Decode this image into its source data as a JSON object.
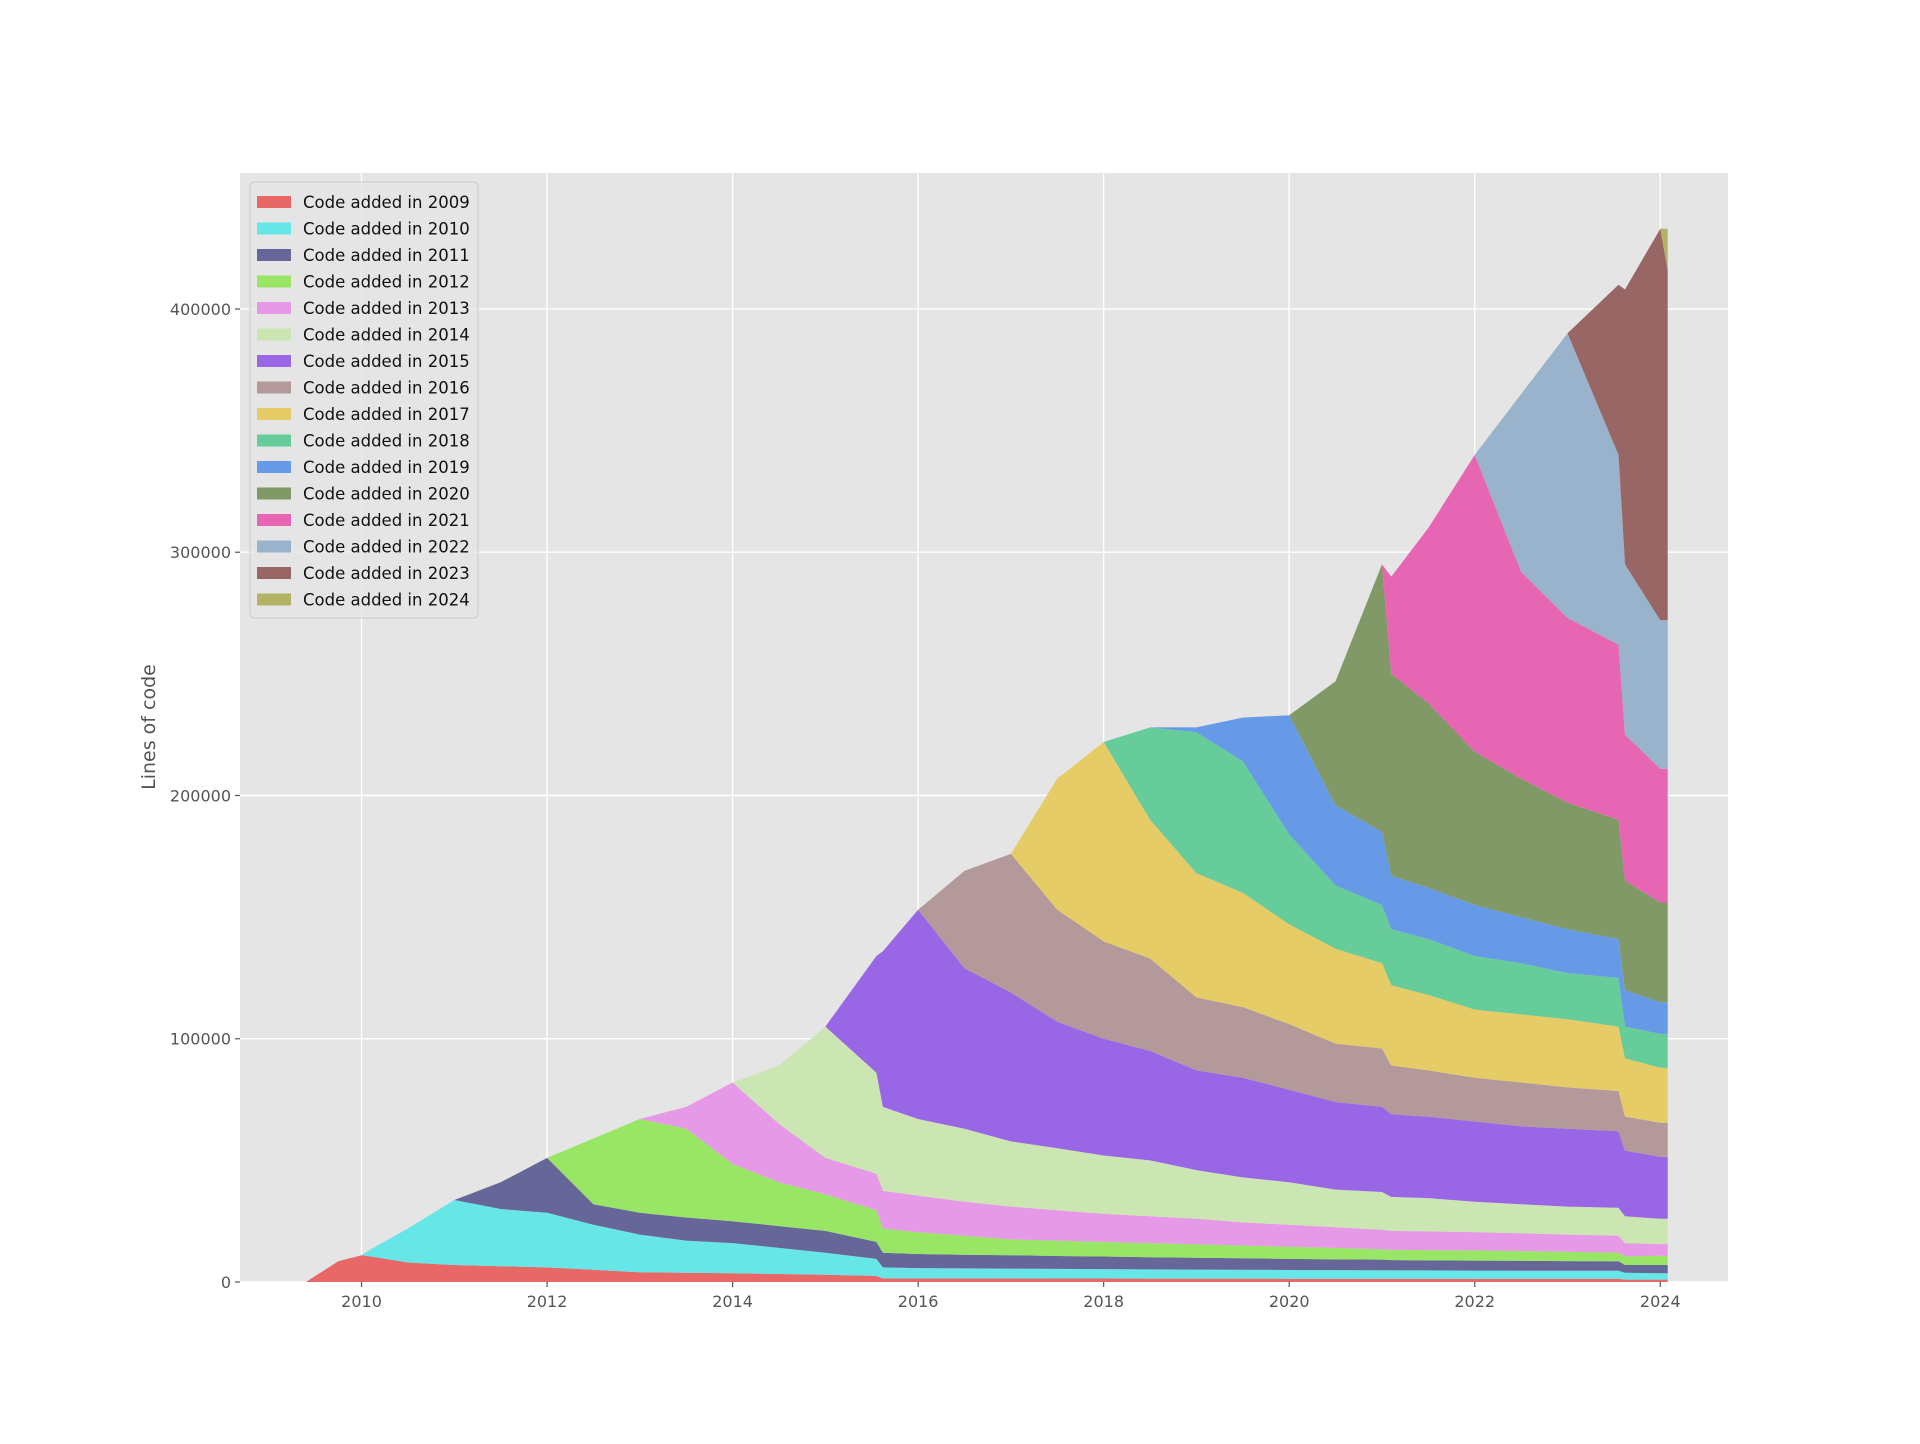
{
  "chart_data": {
    "type": "area",
    "stacked": true,
    "title": "",
    "xlabel": "",
    "ylabel": "Lines of code",
    "xlim": [
      2008.69,
      2024.73
    ],
    "ylim": [
      0,
      455900
    ],
    "grid": true,
    "legend_position": "top-left",
    "xticks": [
      2010,
      2012,
      2014,
      2016,
      2018,
      2020,
      2022,
      2024
    ],
    "xtick_labels": [
      "2010",
      "2012",
      "2014",
      "2016",
      "2018",
      "2020",
      "2022",
      "2024"
    ],
    "yticks": [
      0,
      100000,
      200000,
      300000,
      400000
    ],
    "ytick_labels": [
      "0",
      "100000",
      "200000",
      "300000",
      "400000"
    ],
    "x": [
      2009.4,
      2009.75,
      2010.0,
      2010.1,
      2010.5,
      2011.0,
      2011.5,
      2012.0,
      2012.5,
      2013.0,
      2013.5,
      2014.0,
      2014.5,
      2015.0,
      2015.55,
      2015.62,
      2016.0,
      2016.5,
      2017.0,
      2017.5,
      2018.0,
      2018.5,
      2019.0,
      2019.5,
      2020.0,
      2020.5,
      2021.0,
      2021.1,
      2021.5,
      2022.0,
      2022.5,
      2023.0,
      2023.55,
      2023.62,
      2024.0,
      2024.08
    ],
    "series": [
      {
        "name": "Code added in 2009",
        "color": "#e86868",
        "values": [
          0,
          8500,
          11000,
          10500,
          8000,
          7000,
          6500,
          6000,
          5000,
          4000,
          3800,
          3600,
          3300,
          3000,
          2500,
          1500,
          1500,
          1500,
          1500,
          1450,
          1450,
          1400,
          1400,
          1400,
          1350,
          1350,
          1300,
          1300,
          1300,
          1300,
          1300,
          1300,
          1300,
          1000,
          1000,
          1000
        ]
      },
      {
        "name": "Code added in 2010",
        "color": "#66e6e6",
        "values": [
          0,
          0,
          0,
          3000,
          14000,
          26700,
          23500,
          22500,
          18500,
          15500,
          13200,
          12400,
          10700,
          9000,
          7000,
          4500,
          4200,
          4100,
          4000,
          3950,
          3850,
          3800,
          3700,
          3600,
          3600,
          3550,
          3550,
          3500,
          3450,
          3400,
          3350,
          3300,
          3300,
          2800,
          2600,
          2600
        ]
      },
      {
        "name": "Code added in 2011",
        "color": "#666699",
        "values": [
          0,
          0,
          0,
          0,
          0,
          0,
          11000,
          22500,
          8500,
          9000,
          9500,
          9000,
          9000,
          9000,
          7000,
          6000,
          5800,
          5600,
          5500,
          5300,
          5200,
          5000,
          4900,
          4800,
          4550,
          4400,
          4350,
          4200,
          4150,
          4100,
          4050,
          4000,
          3900,
          3200,
          3400,
          3400
        ]
      },
      {
        "name": "Code added in 2012",
        "color": "#99e666",
        "values": [
          0,
          0,
          0,
          0,
          0,
          0,
          0,
          0,
          27000,
          38500,
          36500,
          23500,
          18000,
          15000,
          13000,
          10000,
          9000,
          7800,
          6500,
          6300,
          6000,
          5800,
          5500,
          5200,
          5000,
          4700,
          4300,
          4200,
          4200,
          4200,
          4000,
          3800,
          3500,
          3500,
          3800,
          3800
        ]
      },
      {
        "name": "Code added in 2013",
        "color": "#e699e6",
        "values": [
          0,
          0,
          0,
          0,
          0,
          0,
          0,
          0,
          0,
          0,
          9000,
          33500,
          24000,
          15000,
          15000,
          15500,
          15000,
          14000,
          13500,
          12500,
          11500,
          11000,
          10500,
          9500,
          9000,
          8500,
          8000,
          7800,
          7700,
          7500,
          7300,
          7100,
          7000,
          5500,
          4800,
          4800
        ]
      },
      {
        "name": "Code added in 2014",
        "color": "#cce6b3",
        "values": [
          0,
          0,
          0,
          0,
          0,
          0,
          0,
          0,
          0,
          0,
          0,
          0,
          24000,
          54000,
          41500,
          34500,
          31500,
          30000,
          26800,
          25500,
          24000,
          23000,
          20000,
          18500,
          17500,
          15500,
          15500,
          14000,
          13700,
          12500,
          12000,
          11500,
          11500,
          11000,
          10400,
          10400
        ]
      },
      {
        "name": "Code added in 2015",
        "color": "#9966e6",
        "values": [
          0,
          0,
          0,
          0,
          0,
          0,
          0,
          0,
          0,
          0,
          0,
          0,
          0,
          0,
          48000,
          64000,
          86000,
          66000,
          61200,
          52000,
          48000,
          45000,
          41000,
          41000,
          38000,
          36000,
          35000,
          34000,
          33500,
          33000,
          32000,
          32000,
          31500,
          27000,
          25500,
          25500
        ]
      },
      {
        "name": "Code added in 2016",
        "color": "#b39999",
        "values": [
          0,
          0,
          0,
          0,
          0,
          0,
          0,
          0,
          0,
          0,
          0,
          0,
          0,
          0,
          0,
          0,
          0,
          40000,
          57000,
          46000,
          40000,
          38000,
          30000,
          29000,
          27000,
          24000,
          24000,
          20000,
          19000,
          18000,
          18000,
          17000,
          16500,
          14000,
          14000,
          14000
        ]
      },
      {
        "name": "Code added in 2017",
        "color": "#e6cc66",
        "values": [
          0,
          0,
          0,
          0,
          0,
          0,
          0,
          0,
          0,
          0,
          0,
          0,
          0,
          0,
          0,
          0,
          0,
          0,
          0,
          54000,
          82000,
          57000,
          51000,
          47000,
          41000,
          39000,
          35000,
          33000,
          31000,
          28000,
          28000,
          28000,
          26500,
          24000,
          22500,
          22500
        ]
      },
      {
        "name": "Code added in 2018",
        "color": "#66cc99",
        "values": [
          0,
          0,
          0,
          0,
          0,
          0,
          0,
          0,
          0,
          0,
          0,
          0,
          0,
          0,
          0,
          0,
          0,
          0,
          0,
          0,
          0,
          38000,
          58000,
          54000,
          37000,
          26000,
          24000,
          23000,
          23000,
          22000,
          21000,
          19000,
          20000,
          13000,
          14000,
          14000
        ]
      },
      {
        "name": "Code added in 2019",
        "color": "#6699e6",
        "values": [
          0,
          0,
          0,
          0,
          0,
          0,
          0,
          0,
          0,
          0,
          0,
          0,
          0,
          0,
          0,
          0,
          0,
          0,
          0,
          0,
          0,
          0,
          2000,
          18000,
          49000,
          33000,
          30000,
          22000,
          21000,
          21000,
          19000,
          18000,
          16000,
          15000,
          13000,
          13000
        ]
      },
      {
        "name": "Code added in 2020",
        "color": "#809966",
        "values": [
          0,
          0,
          0,
          0,
          0,
          0,
          0,
          0,
          0,
          0,
          0,
          0,
          0,
          0,
          0,
          0,
          0,
          0,
          0,
          0,
          0,
          0,
          0,
          0,
          0,
          51000,
          110000,
          83000,
          76000,
          63000,
          57000,
          52000,
          49000,
          45000,
          41000,
          41000
        ]
      },
      {
        "name": "Code added in 2021",
        "color": "#e666b3",
        "values": [
          0,
          0,
          0,
          0,
          0,
          0,
          0,
          0,
          0,
          0,
          0,
          0,
          0,
          0,
          0,
          0,
          0,
          0,
          0,
          0,
          0,
          0,
          0,
          0,
          0,
          0,
          0,
          40000,
          72000,
          122000,
          85000,
          76000,
          72000,
          60000,
          55000,
          55000
        ]
      },
      {
        "name": "Code added in 2022",
        "color": "#99b3cc",
        "values": [
          0,
          0,
          0,
          0,
          0,
          0,
          0,
          0,
          0,
          0,
          0,
          0,
          0,
          0,
          0,
          0,
          0,
          0,
          0,
          0,
          0,
          0,
          0,
          0,
          0,
          0,
          0,
          0,
          0,
          0,
          73000,
          117000,
          78000,
          70000,
          61000,
          61000
        ]
      },
      {
        "name": "Code added in 2023",
        "color": "#996666",
        "values": [
          0,
          0,
          0,
          0,
          0,
          0,
          0,
          0,
          0,
          0,
          0,
          0,
          0,
          0,
          0,
          0,
          0,
          0,
          0,
          0,
          0,
          0,
          0,
          0,
          0,
          0,
          0,
          0,
          0,
          0,
          0,
          0,
          70000,
          113000,
          161000,
          144000
        ]
      },
      {
        "name": "Code added in 2024",
        "color": "#b3b366",
        "values": [
          0,
          0,
          0,
          0,
          0,
          0,
          0,
          0,
          0,
          0,
          0,
          0,
          0,
          0,
          0,
          0,
          0,
          0,
          0,
          0,
          0,
          0,
          0,
          0,
          0,
          0,
          0,
          0,
          0,
          0,
          0,
          0,
          0,
          0,
          0,
          17000
        ]
      }
    ]
  }
}
